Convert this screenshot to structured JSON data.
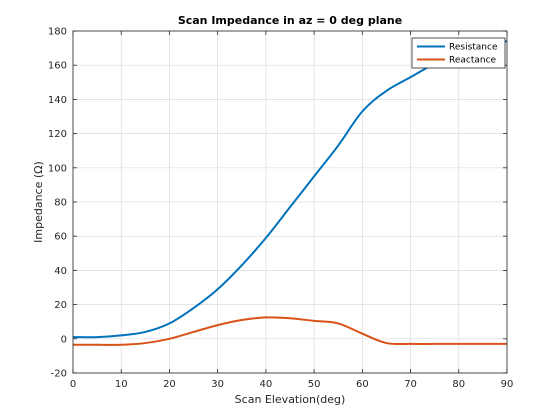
{
  "chart_data": {
    "type": "line",
    "title": "Scan Impedance in az = 0 deg plane",
    "xlabel": "Scan Elevation(deg)",
    "ylabel": "Impedance (Ω)",
    "xlim": [
      0,
      90
    ],
    "ylim": [
      -20,
      180
    ],
    "xticks": [
      0,
      10,
      20,
      30,
      40,
      50,
      60,
      70,
      80,
      90
    ],
    "yticks": [
      -20,
      0,
      20,
      40,
      60,
      80,
      100,
      120,
      140,
      160,
      180
    ],
    "grid": true,
    "legend_position": "top-right",
    "x": [
      0,
      5,
      10,
      15,
      20,
      25,
      30,
      35,
      40,
      45,
      50,
      55,
      60,
      65,
      70,
      75,
      80,
      85,
      90
    ],
    "series": [
      {
        "name": "Resistance",
        "color": "#0072BD",
        "values": [
          1,
          1,
          2,
          4,
          9,
          18,
          29,
          43,
          59,
          77,
          95,
          113,
          133,
          145,
          153,
          161,
          168,
          173,
          174
        ]
      },
      {
        "name": "Reactance",
        "color": "#D95319",
        "values": [
          -3.5,
          -3.5,
          -3.5,
          -2.5,
          0,
          4,
          8,
          11,
          12.5,
          12,
          10.5,
          9,
          3,
          -2.5,
          -3,
          -3,
          -3,
          -3,
          -3
        ]
      }
    ]
  }
}
